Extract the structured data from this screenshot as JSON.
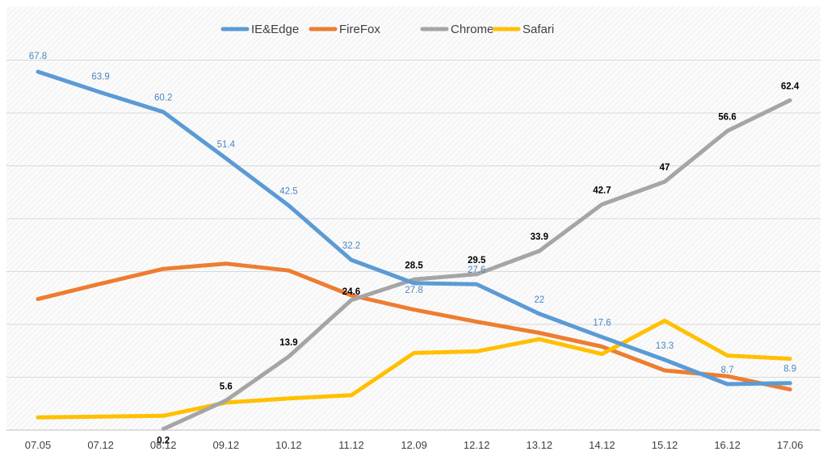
{
  "chart_data": {
    "type": "line",
    "title": "",
    "xlabel": "",
    "ylabel": "",
    "ylim": [
      0,
      70
    ],
    "grid": true,
    "legend_position": "top-center",
    "categories": [
      "07.05",
      "07.12",
      "08.12",
      "09.12",
      "10.12",
      "11.12",
      "12.09",
      "12.12",
      "13.12",
      "14.12",
      "15.12",
      "16.12",
      "17.06"
    ],
    "series": [
      {
        "name": "IE&Edge",
        "color": "#5B9BD5",
        "values": [
          67.8,
          63.9,
          60.2,
          51.4,
          42.5,
          32.2,
          27.8,
          27.6,
          22,
          17.6,
          13.3,
          8.7,
          8.9
        ],
        "labels": [
          "67.8",
          "63.9",
          "60.2",
          "51.4",
          "42.5",
          "32.2",
          "27.8",
          "27.6",
          "22",
          "17.6",
          "13.3",
          "8.7",
          "8.9"
        ],
        "label_color": "#4A86C5"
      },
      {
        "name": "FireFox",
        "color": "#ED7D31",
        "values": [
          24.8,
          27.7,
          30.5,
          31.5,
          30.2,
          25.5,
          22.8,
          20.5,
          18.4,
          15.8,
          11.3,
          10.2,
          7.7
        ],
        "labels": []
      },
      {
        "name": "Chrome",
        "color": "#A5A5A5",
        "values": [
          null,
          null,
          0.2,
          5.6,
          13.9,
          24.6,
          28.5,
          29.5,
          33.9,
          42.7,
          47,
          56.6,
          62.4
        ],
        "labels": [
          null,
          null,
          "0.2",
          "5.6",
          "13.9",
          "24.6",
          "28.5",
          "29.5",
          "33.9",
          "42.7",
          "47",
          "56.6",
          "62.4"
        ],
        "label_color": "#000000"
      },
      {
        "name": "Safari",
        "color": "#FFC000",
        "values": [
          2.4,
          null,
          2.7,
          5.2,
          6.0,
          6.6,
          14.6,
          14.9,
          17.2,
          14.4,
          20.7,
          14.1,
          13.5
        ],
        "labels": []
      }
    ]
  }
}
